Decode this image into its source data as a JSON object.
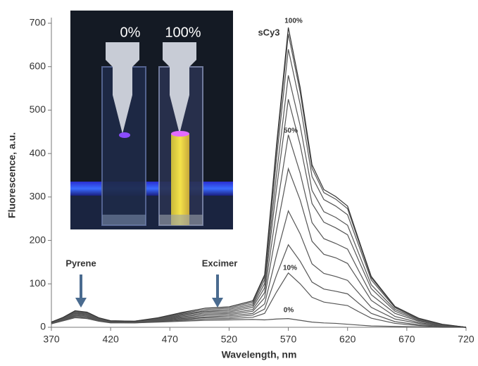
{
  "chart_data": {
    "type": "line",
    "x_label": "Wavelength, nm",
    "y_label": "Fluorescence, a.u.",
    "xlim": [
      370,
      720
    ],
    "xticks": [
      370,
      420,
      470,
      520,
      570,
      620,
      670,
      720
    ],
    "ylim": [
      0,
      700
    ],
    "yticks": [
      0,
      100,
      200,
      300,
      400,
      500,
      600,
      700
    ],
    "x": [
      370,
      380,
      390,
      400,
      410,
      420,
      440,
      460,
      480,
      500,
      520,
      540,
      550,
      560,
      570,
      580,
      590,
      600,
      610,
      620,
      630,
      640,
      660,
      680,
      700,
      720
    ],
    "series": [
      {
        "color": "#555555",
        "values": [
          8,
          15,
          22,
          20,
          14,
          10,
          10,
          12,
          14,
          16,
          17,
          18,
          17,
          19,
          20,
          16,
          12,
          10,
          9,
          7,
          5,
          3,
          2,
          1,
          0,
          0
        ]
      },
      {
        "color": "#555555",
        "values": [
          8,
          16,
          24,
          22,
          15,
          11,
          10,
          13,
          16,
          19,
          20,
          23,
          32,
          81,
          125,
          100,
          69,
          58,
          54,
          50,
          35,
          21,
          9,
          4,
          1,
          0
        ]
      },
      {
        "color": "#555555",
        "values": [
          9,
          17,
          25,
          23,
          16,
          11,
          11,
          14,
          18,
          22,
          23,
          28,
          42,
          120,
          190,
          152,
          104,
          88,
          83,
          77,
          54,
          32,
          13,
          6,
          2,
          0
        ]
      },
      {
        "color": "#555555",
        "values": [
          9,
          17,
          27,
          25,
          16,
          12,
          11,
          15,
          20,
          24,
          26,
          32,
          54,
          166,
          268,
          215,
          146,
          124,
          117,
          108,
          77,
          46,
          19,
          9,
          3,
          0
        ]
      },
      {
        "color": "#555555",
        "values": [
          10,
          18,
          28,
          26,
          17,
          12,
          12,
          16,
          22,
          27,
          29,
          37,
          68,
          223,
          365,
          293,
          198,
          168,
          160,
          147,
          105,
          62,
          25,
          11,
          3,
          0
        ]
      },
      {
        "color": "#555555",
        "values": [
          10,
          19,
          30,
          28,
          18,
          13,
          12,
          17,
          24,
          30,
          32,
          41,
          80,
          270,
          443,
          355,
          241,
          204,
          193,
          180,
          127,
          75,
          32,
          14,
          4,
          0
        ]
      },
      {
        "color": "#555555",
        "values": [
          10,
          20,
          32,
          29,
          19,
          13,
          12,
          18,
          26,
          33,
          35,
          46,
          91,
          318,
          525,
          420,
          285,
          242,
          229,
          213,
          150,
          89,
          37,
          16,
          5,
          0
        ]
      },
      {
        "color": "#555555",
        "values": [
          11,
          21,
          33,
          31,
          20,
          14,
          13,
          19,
          28,
          36,
          38,
          50,
          101,
          351,
          580,
          464,
          315,
          266,
          253,
          235,
          166,
          98,
          41,
          18,
          6,
          0
        ]
      },
      {
        "color": "#555555",
        "values": [
          11,
          21,
          35,
          32,
          20,
          14,
          13,
          20,
          30,
          38,
          41,
          54,
          110,
          387,
          640,
          513,
          347,
          294,
          279,
          259,
          184,
          109,
          45,
          19,
          6,
          0
        ]
      },
      {
        "color": "#555555",
        "values": [
          12,
          22,
          36,
          34,
          21,
          15,
          14,
          21,
          32,
          41,
          44,
          58,
          117,
          409,
          675,
          541,
          366,
          310,
          295,
          273,
          193,
          114,
          47,
          20,
          6,
          0
        ]
      },
      {
        "color": "#333333",
        "values": [
          12,
          23,
          38,
          35,
          22,
          15,
          14,
          22,
          34,
          44,
          47,
          61,
          121,
          419,
          690,
          552,
          374,
          317,
          301,
          279,
          197,
          117,
          48,
          21,
          7,
          0
        ]
      }
    ],
    "annotations": [
      "100%",
      "50%",
      "10%",
      "0%",
      "sCy3",
      "Pyrene",
      "Excimer"
    ],
    "inset_labels": [
      "0%",
      "100%"
    ]
  }
}
